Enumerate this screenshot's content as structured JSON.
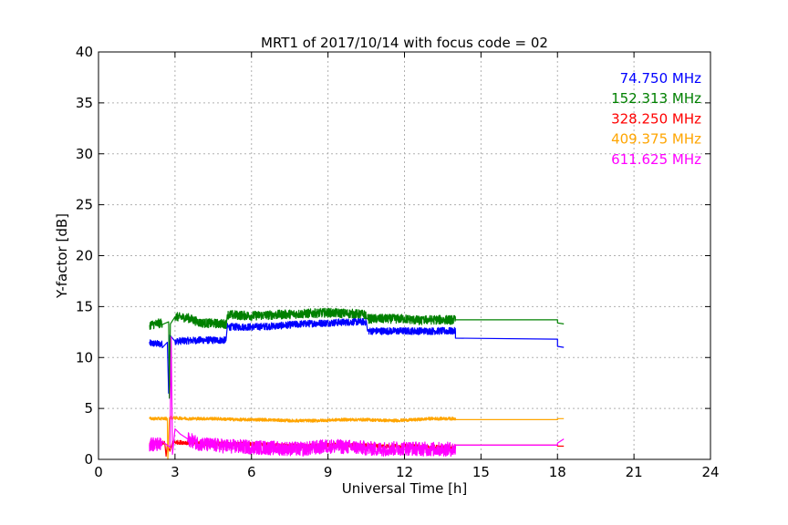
{
  "chart_data": {
    "type": "line",
    "title": "MRT1 of 2017/10/14 with focus code = 02",
    "xlabel": "Universal Time [h]",
    "ylabel": "Y-factor [dB]",
    "xlim": [
      0,
      24
    ],
    "ylim": [
      0,
      40
    ],
    "xticks": [
      0,
      3,
      6,
      9,
      12,
      15,
      18,
      21,
      24
    ],
    "yticks": [
      0,
      5,
      10,
      15,
      20,
      25,
      30,
      35,
      40
    ],
    "grid": true,
    "legend_position": "top-right",
    "series": [
      {
        "name": "74.750 MHz",
        "color": "#0000ff",
        "noise": 0.35,
        "points": [
          [
            2.0,
            11.4
          ],
          [
            2.5,
            11.3
          ],
          [
            2.7,
            11.5
          ],
          [
            2.75,
            6.5
          ],
          [
            2.8,
            12.2
          ],
          [
            3.0,
            11.6
          ],
          [
            4.0,
            11.7
          ],
          [
            5.0,
            11.7
          ],
          [
            5.05,
            13.0
          ],
          [
            6.0,
            13.0
          ],
          [
            7.0,
            13.1
          ],
          [
            8.0,
            13.3
          ],
          [
            9.0,
            13.4
          ],
          [
            10.0,
            13.5
          ],
          [
            10.5,
            13.5
          ],
          [
            10.55,
            12.6
          ],
          [
            12.0,
            12.6
          ],
          [
            13.0,
            12.6
          ],
          [
            14.0,
            12.6
          ],
          [
            14.0,
            11.9
          ],
          [
            18.0,
            11.8
          ],
          [
            18.0,
            11.1
          ],
          [
            18.25,
            11.0
          ]
        ]
      },
      {
        "name": "152.313 MHz",
        "color": "#008000",
        "noise": 0.45,
        "points": [
          [
            2.0,
            13.2
          ],
          [
            2.5,
            13.4
          ],
          [
            2.75,
            13.5
          ],
          [
            2.78,
            6.0
          ],
          [
            2.82,
            13.3
          ],
          [
            3.0,
            14.0
          ],
          [
            3.5,
            13.9
          ],
          [
            4.0,
            13.4
          ],
          [
            5.0,
            13.3
          ],
          [
            5.05,
            14.2
          ],
          [
            6.0,
            14.1
          ],
          [
            7.0,
            14.2
          ],
          [
            8.0,
            14.3
          ],
          [
            9.0,
            14.4
          ],
          [
            10.0,
            14.3
          ],
          [
            10.5,
            14.2
          ],
          [
            10.55,
            13.8
          ],
          [
            12.0,
            13.8
          ],
          [
            12.7,
            13.6
          ],
          [
            12.75,
            13.7
          ],
          [
            14.0,
            13.7
          ],
          [
            14.0,
            13.7
          ],
          [
            18.0,
            13.7
          ],
          [
            18.0,
            13.4
          ],
          [
            18.25,
            13.3
          ]
        ]
      },
      {
        "name": "328.250 MHz",
        "color": "#ff0000",
        "noise": 0.2,
        "points": [
          [
            2.0,
            1.6
          ],
          [
            2.6,
            1.6
          ],
          [
            2.65,
            0.3
          ],
          [
            2.7,
            1.5
          ],
          [
            2.8,
            0.8
          ],
          [
            2.9,
            1.7
          ],
          [
            4.0,
            1.6
          ],
          [
            5.0,
            1.5
          ],
          [
            6.0,
            1.5
          ],
          [
            7.0,
            1.4
          ],
          [
            8.0,
            1.3
          ],
          [
            9.0,
            1.4
          ],
          [
            10.0,
            1.4
          ],
          [
            11.0,
            1.3
          ],
          [
            12.0,
            1.3
          ],
          [
            13.0,
            1.2
          ],
          [
            14.0,
            1.2
          ],
          [
            14.0,
            1.4
          ],
          [
            18.0,
            1.4
          ],
          [
            18.0,
            1.3
          ],
          [
            18.25,
            1.3
          ]
        ]
      },
      {
        "name": "409.375 MHz",
        "color": "#ffa500",
        "noise": 0.15,
        "points": [
          [
            2.0,
            4.0
          ],
          [
            2.7,
            4.0
          ],
          [
            2.72,
            0.0
          ],
          [
            2.78,
            4.1
          ],
          [
            3.5,
            4.0
          ],
          [
            4.5,
            4.0
          ],
          [
            5.5,
            3.9
          ],
          [
            6.5,
            3.9
          ],
          [
            7.5,
            3.8
          ],
          [
            8.5,
            3.8
          ],
          [
            9.5,
            3.9
          ],
          [
            10.5,
            3.9
          ],
          [
            11.5,
            3.8
          ],
          [
            12.5,
            3.9
          ],
          [
            13.0,
            4.0
          ],
          [
            14.0,
            4.0
          ],
          [
            14.0,
            3.9
          ],
          [
            18.0,
            3.9
          ],
          [
            18.0,
            4.0
          ],
          [
            18.25,
            4.0
          ]
        ]
      },
      {
        "name": "611.625 MHz",
        "color": "#ff00ff",
        "noise": 0.7,
        "points": [
          [
            2.0,
            1.5
          ],
          [
            2.5,
            1.4
          ],
          [
            2.8,
            1.2
          ],
          [
            2.85,
            12.0
          ],
          [
            2.9,
            0.5
          ],
          [
            3.0,
            3.0
          ],
          [
            3.2,
            2.5
          ],
          [
            3.5,
            2.0
          ],
          [
            4.0,
            1.5
          ],
          [
            5.0,
            1.3
          ],
          [
            6.0,
            1.2
          ],
          [
            7.0,
            1.1
          ],
          [
            8.0,
            1.0
          ],
          [
            9.0,
            1.3
          ],
          [
            10.0,
            1.2
          ],
          [
            10.5,
            1.1
          ],
          [
            11.0,
            1.0
          ],
          [
            12.0,
            1.1
          ],
          [
            13.0,
            1.0
          ],
          [
            14.0,
            1.0
          ],
          [
            14.0,
            1.4
          ],
          [
            18.0,
            1.4
          ],
          [
            18.0,
            1.6
          ],
          [
            18.25,
            2.0
          ]
        ]
      }
    ]
  }
}
